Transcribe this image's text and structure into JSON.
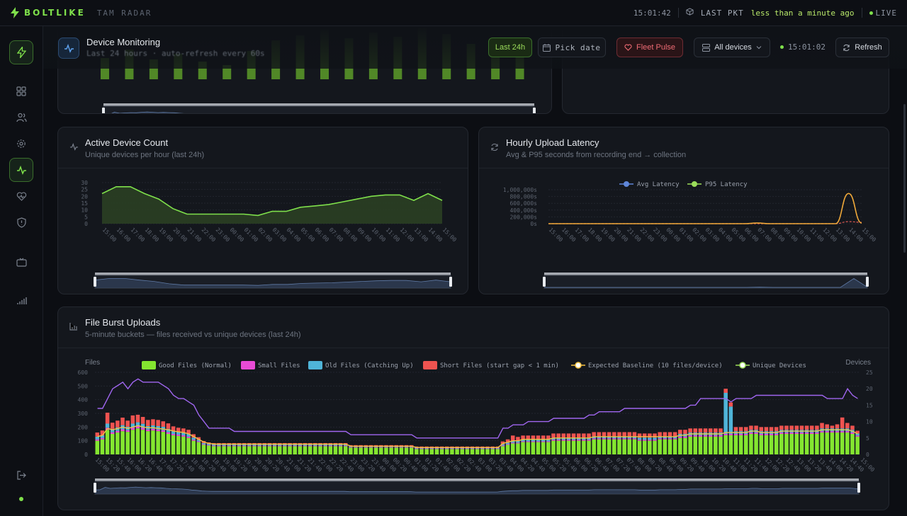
{
  "topbar": {
    "brand": "BOLTLIKE",
    "subtitle": "TAM RADAR",
    "clock": "15:01:42",
    "last_pkt_label": "LAST PKT",
    "last_pkt_value": "less than a minute ago",
    "live_label": "LIVE"
  },
  "sidebar": {
    "items": [
      "dashboard-icon",
      "users-icon",
      "settings-icon",
      "activity-icon",
      "heart-icon",
      "shield-icon",
      "tv-icon",
      "signal-icon"
    ],
    "active": "activity-icon",
    "footer": [
      "logout-icon"
    ]
  },
  "header": {
    "title": "Device Monitoring",
    "subtitle": "Last 24 hours · auto-refresh every 60s",
    "range_button": "Last 24h",
    "date_button": "Pick date",
    "pulse_button": "Fleet Pulse",
    "devices_select": "All devices",
    "clock": "15:01:02",
    "refresh_button": "Refresh"
  },
  "cards": {
    "active": {
      "title": "Active Device Count",
      "subtitle": "Unique devices per hour (last 24h)"
    },
    "latency": {
      "title": "Hourly Upload Latency",
      "subtitle": "Avg & P95 seconds from recording end → collection"
    },
    "burst": {
      "title": "File Burst Uploads",
      "subtitle": "5-minute buckets — files received vs unique devices (last 24h)"
    }
  },
  "colors": {
    "accent": "#7fe04b",
    "good": "#84e630",
    "small": "#e94bd6",
    "old": "#4fb4d8",
    "short": "#ef5350",
    "baseline": "#f5c242",
    "devices": "#a066f0",
    "avg": "#5f86d9",
    "p95": "#f0a93a"
  },
  "chart_data": [
    {
      "type": "area",
      "id": "active",
      "x": [
        "15:00",
        "16:00",
        "17:00",
        "18:00",
        "19:00",
        "20:00",
        "21:00",
        "22:00",
        "23:00",
        "00:00",
        "01:00",
        "02:00",
        "03:00",
        "04:00",
        "05:00",
        "06:00",
        "07:00",
        "08:00",
        "09:00",
        "10:00",
        "11:00",
        "12:00",
        "13:00",
        "14:00",
        "15:00"
      ],
      "series": [
        {
          "values": [
            22,
            27,
            27,
            22,
            18,
            11,
            7,
            7,
            7,
            7,
            7,
            6,
            9,
            9,
            12,
            13,
            14,
            16,
            18,
            20,
            21,
            21,
            17,
            22,
            17
          ]
        }
      ],
      "y_ticks": [
        0,
        5,
        10,
        15,
        20,
        25,
        30
      ],
      "ylim": [
        0,
        30
      ]
    },
    {
      "type": "line",
      "id": "latency",
      "x": [
        "15:00",
        "16:00",
        "17:00",
        "18:00",
        "19:00",
        "20:00",
        "21:00",
        "22:00",
        "23:00",
        "00:00",
        "01:00",
        "02:00",
        "03:00",
        "04:00",
        "05:00",
        "06:00",
        "07:00",
        "08:00",
        "09:00",
        "10:00",
        "11:00",
        "12:00",
        "13:00",
        "14:00",
        "15:00"
      ],
      "y_ticks": [
        "0s",
        "200,000s",
        "400,000s",
        "600,000s",
        "800,000s",
        "1,000,000s"
      ],
      "ylim": [
        0,
        1000000
      ],
      "series": [
        {
          "name": "Avg Latency",
          "values": [
            0,
            0,
            0,
            0,
            0,
            0,
            0,
            0,
            0,
            0,
            0,
            0,
            0,
            0,
            0,
            0,
            0,
            0,
            0,
            0,
            0,
            0,
            0,
            60000,
            40000
          ]
        },
        {
          "name": "P95 Latency",
          "values": [
            0,
            0,
            0,
            0,
            0,
            0,
            0,
            0,
            0,
            0,
            0,
            0,
            0,
            0,
            0,
            0,
            20000,
            0,
            0,
            0,
            0,
            0,
            0,
            890000,
            20000
          ]
        }
      ]
    },
    {
      "type": "bar",
      "id": "burst",
      "left_axis_title": "Files",
      "right_axis_title": "Devices",
      "y_ticks": [
        0,
        100,
        200,
        300,
        400,
        500,
        600
      ],
      "y2_ticks": [
        0,
        5,
        10,
        15,
        20,
        25
      ],
      "ylim": [
        0,
        600
      ],
      "y2lim": [
        0,
        25
      ],
      "x_labels": [
        "15:00",
        "15:20",
        "15:40",
        "16:00",
        "16:20",
        "16:40",
        "17:00",
        "17:20",
        "17:40",
        "18:00",
        "18:20",
        "18:40",
        "19:00",
        "19:20",
        "19:40",
        "20:00",
        "20:20",
        "20:40",
        "21:00",
        "21:20",
        "21:40",
        "22:00",
        "22:20",
        "22:40",
        "23:00",
        "23:20",
        "23:40",
        "00:00",
        "00:20",
        "00:40",
        "01:00",
        "01:20",
        "01:40",
        "02:00",
        "02:20",
        "02:40",
        "03:00",
        "03:20",
        "03:40",
        "04:00",
        "04:20",
        "04:40",
        "05:00",
        "05:20",
        "05:40",
        "06:00",
        "06:20",
        "06:40",
        "07:00",
        "07:20",
        "07:40",
        "08:00",
        "08:20",
        "08:40",
        "09:00",
        "09:20",
        "09:40",
        "10:00",
        "10:20",
        "10:40",
        "11:00",
        "11:20",
        "11:40",
        "12:00",
        "12:20",
        "12:40",
        "13:00",
        "13:20",
        "13:40",
        "14:00",
        "14:20",
        "14:40",
        "15:00"
      ],
      "legend": [
        "Good Files (Normal)",
        "Small Files",
        "Old Files (Catching Up)",
        "Short Files (start gap < 1 min)",
        "Expected Baseline (10 files/device)",
        "Unique Devices"
      ],
      "good_files": [
        100,
        110,
        180,
        150,
        160,
        170,
        165,
        180,
        190,
        180,
        170,
        175,
        170,
        165,
        150,
        140,
        135,
        130,
        120,
        100,
        90,
        70,
        65,
        60,
        60,
        60,
        60,
        60,
        60,
        60,
        60,
        60,
        60,
        60,
        60,
        60,
        60,
        60,
        60,
        60,
        60,
        60,
        60,
        60,
        60,
        60,
        60,
        60,
        60,
        60,
        50,
        50,
        50,
        50,
        50,
        50,
        50,
        50,
        50,
        50,
        50,
        50,
        50,
        40,
        40,
        40,
        40,
        40,
        40,
        40,
        40,
        40,
        40,
        40,
        40,
        40,
        40,
        40,
        40,
        40,
        60,
        70,
        80,
        80,
        90,
        90,
        90,
        90,
        90,
        90,
        100,
        100,
        100,
        100,
        100,
        100,
        100,
        100,
        110,
        110,
        110,
        110,
        110,
        110,
        110,
        110,
        110,
        100,
        100,
        100,
        100,
        110,
        110,
        110,
        110,
        120,
        120,
        130,
        130,
        130,
        130,
        130,
        130,
        130,
        140,
        140,
        140,
        140,
        140,
        150,
        150,
        140,
        140,
        140,
        140,
        150,
        150,
        150,
        150,
        150,
        150,
        150,
        150,
        160,
        160,
        160,
        160,
        160,
        160,
        150,
        130
      ],
      "small_files": [
        10,
        10,
        15,
        12,
        12,
        14,
        12,
        15,
        15,
        14,
        12,
        12,
        12,
        12,
        12,
        10,
        10,
        10,
        10,
        8,
        6,
        5,
        5,
        5,
        5,
        5,
        5,
        5,
        5,
        5,
        5,
        5,
        5,
        5,
        5,
        5,
        5,
        5,
        5,
        5,
        5,
        5,
        5,
        5,
        5,
        5,
        5,
        5,
        5,
        5,
        4,
        4,
        4,
        4,
        4,
        4,
        4,
        4,
        4,
        4,
        4,
        4,
        4,
        4,
        4,
        4,
        4,
        4,
        4,
        4,
        4,
        4,
        4,
        4,
        4,
        4,
        4,
        4,
        4,
        4,
        5,
        5,
        6,
        6,
        6,
        6,
        6,
        6,
        6,
        6,
        8,
        8,
        8,
        8,
        8,
        8,
        8,
        8,
        8,
        8,
        8,
        8,
        8,
        8,
        8,
        8,
        8,
        8,
        8,
        8,
        8,
        8,
        8,
        8,
        8,
        10,
        10,
        10,
        10,
        10,
        10,
        10,
        10,
        10,
        10,
        10,
        10,
        10,
        10,
        10,
        10,
        10,
        10,
        10,
        10,
        10,
        10,
        10,
        10,
        10,
        10,
        10,
        10,
        10,
        10,
        10,
        10,
        10,
        10,
        10,
        8
      ],
      "old_files": [
        20,
        20,
        30,
        25,
        25,
        30,
        25,
        30,
        30,
        30,
        25,
        25,
        25,
        25,
        25,
        20,
        20,
        20,
        20,
        15,
        10,
        8,
        8,
        8,
        8,
        8,
        8,
        8,
        8,
        8,
        8,
        8,
        8,
        8,
        8,
        8,
        8,
        8,
        8,
        8,
        8,
        8,
        8,
        8,
        8,
        8,
        8,
        8,
        8,
        8,
        6,
        6,
        6,
        6,
        6,
        6,
        6,
        6,
        6,
        6,
        6,
        6,
        6,
        6,
        6,
        6,
        6,
        6,
        6,
        6,
        6,
        6,
        6,
        6,
        6,
        6,
        6,
        6,
        6,
        6,
        10,
        10,
        12,
        12,
        12,
        12,
        12,
        12,
        12,
        12,
        15,
        15,
        15,
        15,
        15,
        15,
        15,
        15,
        15,
        15,
        15,
        15,
        15,
        15,
        15,
        15,
        15,
        15,
        15,
        15,
        15,
        15,
        15,
        15,
        15,
        20,
        20,
        20,
        20,
        20,
        20,
        20,
        20,
        20,
        300,
        200,
        20,
        20,
        20,
        20,
        20,
        20,
        20,
        20,
        20,
        20,
        20,
        20,
        20,
        20,
        20,
        20,
        20,
        20,
        20,
        20,
        20,
        20,
        20,
        20,
        15
      ],
      "short_files": [
        30,
        35,
        80,
        45,
        50,
        55,
        45,
        60,
        55,
        50,
        45,
        45,
        45,
        40,
        40,
        35,
        30,
        30,
        30,
        25,
        20,
        15,
        10,
        10,
        10,
        10,
        10,
        10,
        10,
        10,
        10,
        10,
        10,
        10,
        10,
        10,
        10,
        10,
        10,
        10,
        10,
        10,
        10,
        10,
        10,
        10,
        10,
        10,
        10,
        10,
        8,
        8,
        8,
        8,
        8,
        8,
        8,
        8,
        8,
        8,
        8,
        8,
        8,
        8,
        8,
        8,
        8,
        8,
        8,
        8,
        8,
        8,
        8,
        8,
        8,
        8,
        8,
        8,
        8,
        8,
        20,
        25,
        40,
        30,
        30,
        30,
        30,
        30,
        30,
        30,
        30,
        30,
        30,
        30,
        30,
        30,
        30,
        30,
        30,
        30,
        30,
        30,
        30,
        30,
        30,
        30,
        30,
        30,
        30,
        30,
        30,
        30,
        30,
        30,
        30,
        30,
        30,
        30,
        30,
        30,
        30,
        30,
        30,
        30,
        30,
        30,
        30,
        30,
        30,
        30,
        30,
        30,
        30,
        30,
        30,
        30,
        30,
        30,
        30,
        30,
        30,
        30,
        30,
        40,
        30,
        20,
        30,
        80,
        40,
        30,
        20
      ],
      "expected_baseline": [
        130,
        140,
        190,
        180,
        190,
        200,
        190,
        200,
        210,
        200,
        195,
        195,
        190,
        185,
        180,
        170,
        165,
        160,
        150,
        130,
        110,
        90,
        80,
        75,
        75,
        75,
        75,
        75,
        75,
        75,
        75,
        75,
        75,
        75,
        75,
        75,
        75,
        75,
        75,
        75,
        75,
        75,
        75,
        75,
        75,
        75,
        75,
        75,
        75,
        75,
        60,
        60,
        60,
        60,
        60,
        60,
        60,
        60,
        60,
        60,
        60,
        60,
        60,
        50,
        50,
        50,
        50,
        50,
        50,
        50,
        50,
        50,
        50,
        50,
        50,
        50,
        50,
        50,
        50,
        50,
        80,
        90,
        100,
        100,
        110,
        110,
        110,
        110,
        110,
        110,
        120,
        120,
        120,
        120,
        120,
        120,
        120,
        120,
        130,
        130,
        130,
        130,
        130,
        130,
        130,
        130,
        130,
        130,
        130,
        130,
        130,
        130,
        130,
        130,
        130,
        140,
        140,
        150,
        150,
        150,
        150,
        150,
        150,
        150,
        160,
        160,
        160,
        160,
        160,
        170,
        170,
        160,
        160,
        160,
        160,
        170,
        170,
        170,
        170,
        170,
        170,
        170,
        170,
        180,
        180,
        180,
        180,
        180,
        180,
        170,
        150
      ],
      "unique_devices": [
        14,
        14,
        17,
        20,
        21,
        22,
        20,
        22,
        23,
        22,
        22,
        22,
        22,
        21,
        20,
        18,
        17,
        17,
        16,
        15,
        12,
        10,
        8,
        8,
        8,
        8,
        8,
        7,
        7,
        7,
        7,
        7,
        7,
        7,
        7,
        7,
        7,
        7,
        7,
        7,
        7,
        7,
        7,
        7,
        7,
        7,
        7,
        7,
        7,
        7,
        6,
        6,
        6,
        6,
        6,
        6,
        6,
        6,
        6,
        6,
        6,
        6,
        6,
        5,
        5,
        5,
        5,
        5,
        5,
        5,
        5,
        5,
        5,
        5,
        5,
        5,
        5,
        5,
        5,
        5,
        8,
        8,
        9,
        9,
        9,
        10,
        10,
        10,
        10,
        10,
        11,
        11,
        11,
        11,
        11,
        11,
        11,
        12,
        12,
        13,
        13,
        13,
        13,
        13,
        14,
        14,
        14,
        14,
        14,
        14,
        14,
        14,
        14,
        14,
        14,
        14,
        14,
        15,
        15,
        17,
        17,
        17,
        17,
        17,
        17,
        16,
        17,
        17,
        17,
        17,
        18,
        18,
        18,
        18,
        18,
        18,
        18,
        18,
        18,
        18,
        18,
        18,
        18,
        18,
        17,
        17,
        17,
        17,
        20,
        18,
        17
      ]
    }
  ]
}
